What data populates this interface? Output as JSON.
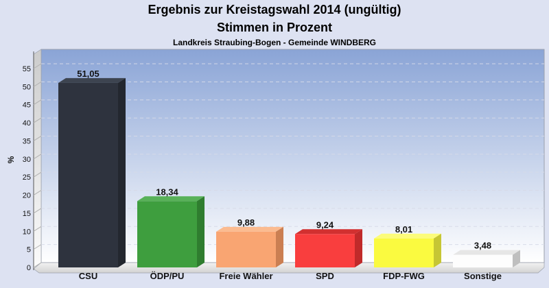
{
  "page": {
    "background": "#dde2f2"
  },
  "chart_data": {
    "type": "bar",
    "style": "3d-column",
    "title": "Ergebnis zur Kreistagswahl 2014 (ungültig)",
    "subtitle": "Stimmen in Prozent",
    "annotation": "Landkreis Straubing-Bogen - Gemeinde WINDBERG",
    "ylabel": "%",
    "ylim": [
      0,
      58
    ],
    "ytick_interval": 5,
    "yticks": [
      0,
      5,
      10,
      15,
      20,
      25,
      30,
      35,
      40,
      45,
      50,
      55
    ],
    "grid": "dashed-horizontal",
    "legend": "none",
    "categories": [
      "CSU",
      "ÖDP/PU",
      "Freie Wähler",
      "SPD",
      "FDP-FWG",
      "Sonstige"
    ],
    "values": [
      51.05,
      18.34,
      9.88,
      9.24,
      8.01,
      3.48
    ],
    "value_labels": [
      "51,05",
      "18,34",
      "9,88",
      "9,24",
      "8,01",
      "3,48"
    ],
    "bars": [
      {
        "category": "CSU",
        "value": 51.05,
        "label": "51,05",
        "front": "#2e333e",
        "top": "#3d4450",
        "side": "#23272f"
      },
      {
        "category": "ÖDP/PU",
        "value": 18.34,
        "label": "18,34",
        "front": "#3e9e3e",
        "top": "#58b158",
        "side": "#2f7d2f"
      },
      {
        "category": "Freie Wähler",
        "value": 9.88,
        "label": "9,88",
        "front": "#f9a572",
        "top": "#fbbb90",
        "side": "#cb7f52"
      },
      {
        "category": "SPD",
        "value": 9.24,
        "label": "9,24",
        "front": "#f93e3e",
        "top": "#d23030",
        "side": "#c02a2a"
      },
      {
        "category": "FDP-FWG",
        "value": 8.01,
        "label": "8,01",
        "front": "#fafa40",
        "top": "#fcfc7a",
        "side": "#c6c634"
      },
      {
        "category": "Sonstige",
        "value": 3.48,
        "label": "3,48",
        "front": "#fdfdfd",
        "top": "#e6e6e6",
        "side": "#bfbfbf"
      }
    ],
    "colors": {
      "outer_background": "#dde2f2",
      "wall_top": "#8aa4d6",
      "wall_bottom": "#ffffff",
      "left_wall_top": "#cccccc",
      "left_wall_bottom": "#fbfbfb",
      "floor_light": "#f2f2f2",
      "floor_dark": "#d2d2d2",
      "grid_line": "#d6dae8",
      "panel_border": "#9aa0ac",
      "axis_line": "#555555",
      "tick_mark": "#b0b0b0",
      "label_color": "#111111"
    }
  }
}
